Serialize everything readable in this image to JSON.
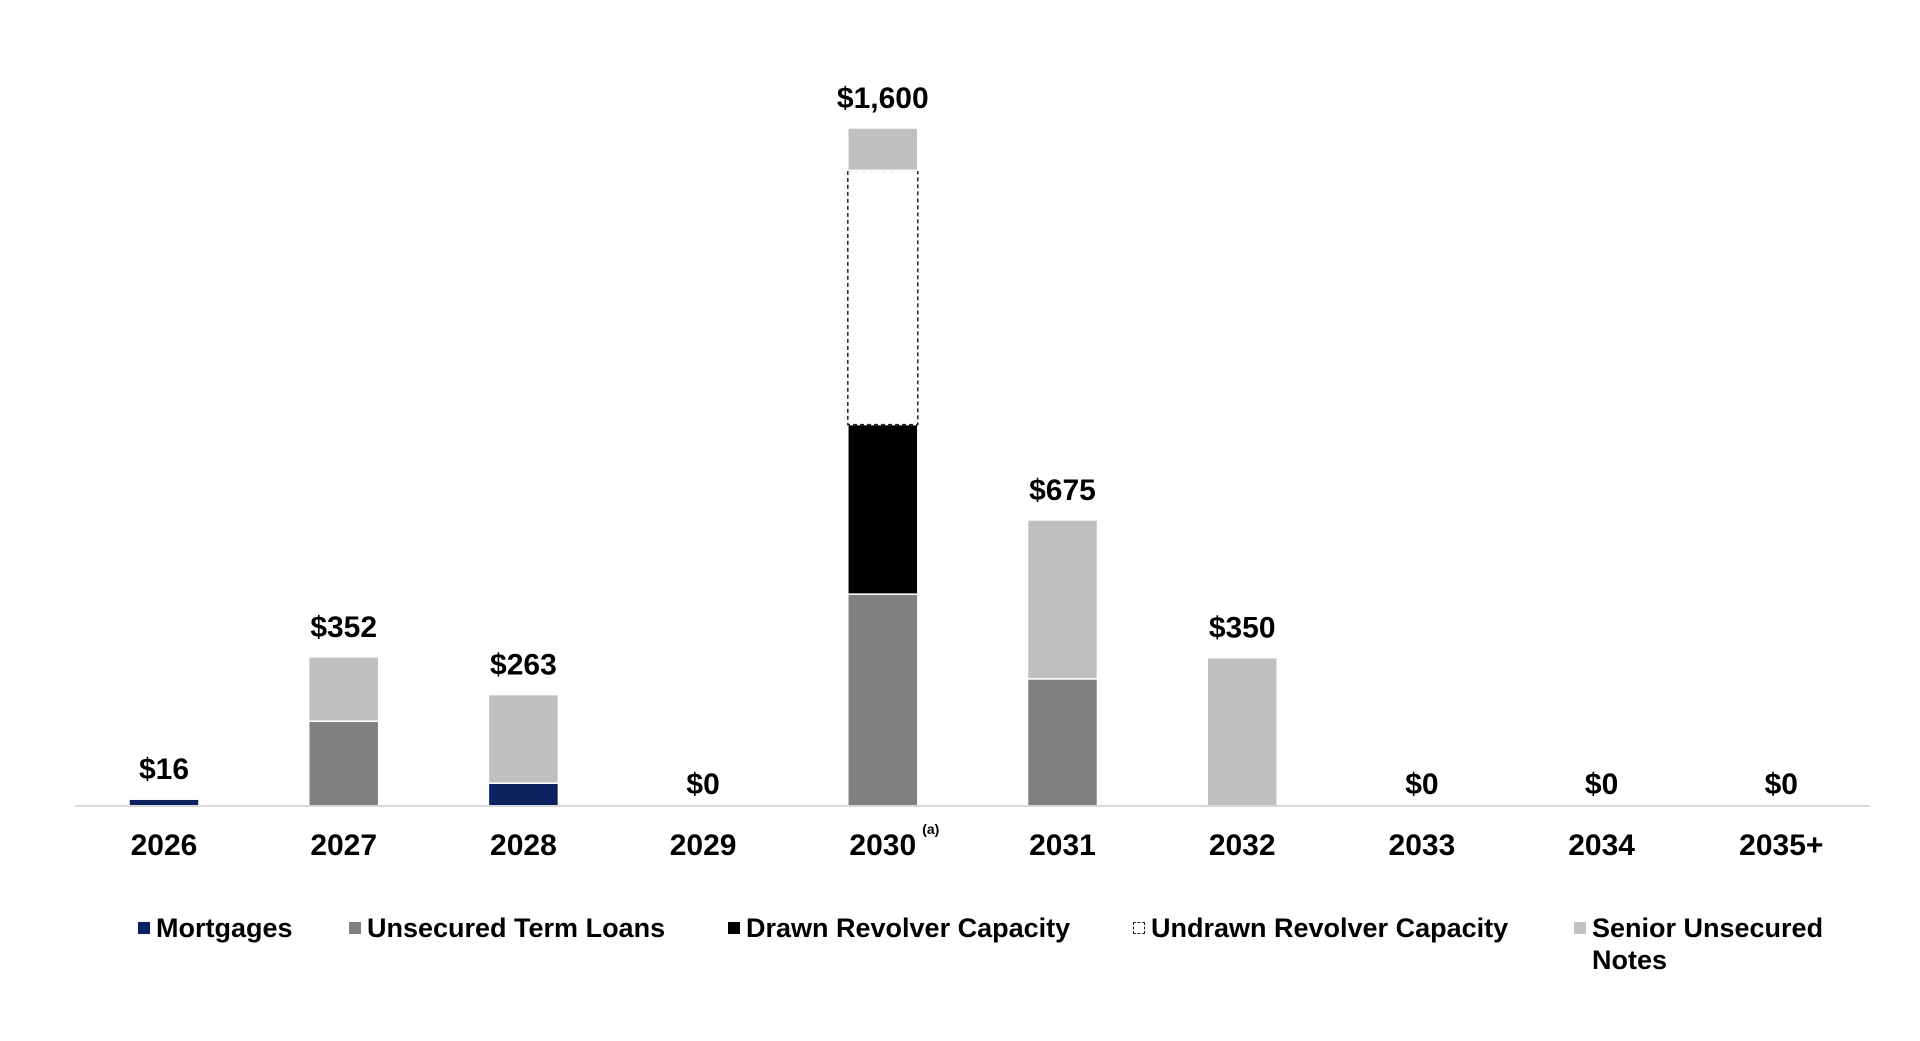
{
  "chart_data": {
    "type": "bar",
    "stacked": true,
    "categories": [
      "2026",
      "2027",
      "2028",
      "2029",
      "2030",
      "2031",
      "2032",
      "2033",
      "2034",
      "2035+"
    ],
    "category_footnotes": {
      "2030": "(a)"
    },
    "totals": [
      "$16",
      "$352",
      "$263",
      "$0",
      "$1,600",
      "$675",
      "$350",
      "$0",
      "$0",
      "$0"
    ],
    "series": [
      {
        "name": "Mortgages",
        "color": "#0b2160",
        "values": [
          16,
          0,
          54,
          0,
          0,
          0,
          0,
          0,
          0,
          0
        ]
      },
      {
        "name": "Unsecured Term Loans",
        "color": "#808080",
        "values": [
          0,
          200,
          0,
          0,
          500,
          300,
          0,
          0,
          0,
          0
        ]
      },
      {
        "name": "Drawn Revolver Capacity",
        "color": "#000000",
        "values": [
          0,
          0,
          0,
          0,
          400,
          0,
          0,
          0,
          0,
          0
        ]
      },
      {
        "name": "Undrawn Revolver Capacity",
        "color": "#ffffff",
        "dashed": true,
        "values": [
          0,
          0,
          0,
          0,
          600,
          0,
          0,
          0,
          0,
          0
        ]
      },
      {
        "name": "Senior Unsecured Notes",
        "color": "#c0c0c0",
        "values": [
          0,
          152,
          209,
          0,
          100,
          375,
          350,
          0,
          0,
          0
        ]
      }
    ],
    "ylim": [
      0,
      1600
    ],
    "grid": false,
    "legend_position": "bottom",
    "title": "",
    "xlabel": "",
    "ylabel": ""
  },
  "legend": {
    "items": [
      {
        "label_lines": [
          "Mortgages"
        ],
        "color": "#0b2160",
        "icon": "square-swatch"
      },
      {
        "label_lines": [
          "Unsecured Term Loans"
        ],
        "color": "#808080",
        "icon": "square-swatch"
      },
      {
        "label_lines": [
          "Drawn Revolver Capacity"
        ],
        "color": "#000000",
        "icon": "square-swatch"
      },
      {
        "label_lines": [
          "Undrawn Revolver Capacity"
        ],
        "color": "#ffffff",
        "icon": "dashed-square-swatch"
      },
      {
        "label_lines": [
          "Senior Unsecured",
          "Notes"
        ],
        "color": "#c0c0c0",
        "icon": "square-swatch"
      }
    ]
  }
}
